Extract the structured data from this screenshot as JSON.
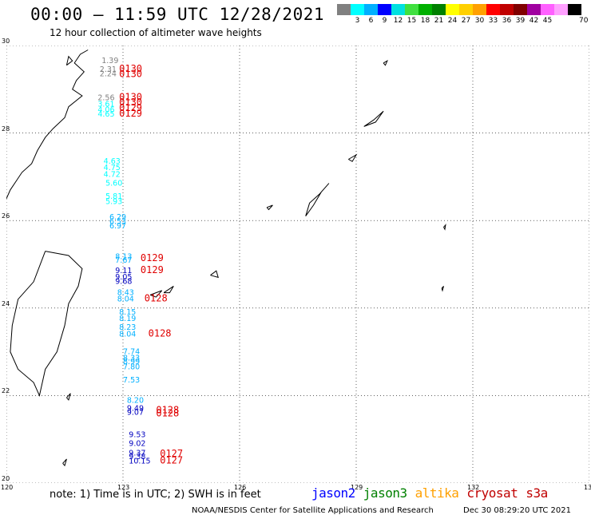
{
  "title": "00:00 – 11:59 UTC 12/28/2021",
  "subtitle": "12 hour collection of altimeter wave heights",
  "legend": {
    "unit": "70 (ft)",
    "colors": [
      "#808080",
      "#00ffff",
      "#00b0ff",
      "#0000ff",
      "#00e0e0",
      "#40e040",
      "#00b000",
      "#008000",
      "#ffff00",
      "#ffd000",
      "#ffa000",
      "#ff0000",
      "#c00000",
      "#800000",
      "#a000a0",
      "#ff60ff",
      "#ffa0ff",
      "#000000"
    ],
    "labels": [
      "",
      "3",
      "6",
      "9",
      "12",
      "15",
      "18",
      "21",
      "24",
      "27",
      "30",
      "33",
      "36",
      "39",
      "42",
      "45",
      "70 (ft)",
      ""
    ]
  },
  "axes": {
    "x_ticks": [
      "120",
      "123",
      "126",
      "129",
      "132",
      "135"
    ],
    "y_ticks": [
      "30",
      "28",
      "26",
      "24",
      "22",
      "20"
    ],
    "x_range": [
      120,
      135
    ],
    "y_range": [
      20,
      30
    ]
  },
  "observations": [
    {
      "lon": 122.45,
      "lat": 29.6,
      "text": "1.39",
      "color": "#808080"
    },
    {
      "lon": 122.4,
      "lat": 29.4,
      "text": "2.31",
      "color": "#808080"
    },
    {
      "lon": 122.4,
      "lat": 29.3,
      "text": "2.24",
      "color": "#808080"
    },
    {
      "lon": 122.35,
      "lat": 28.75,
      "text": "2.56",
      "color": "#808080"
    },
    {
      "lon": 122.35,
      "lat": 28.6,
      "text": "3.61",
      "color": "#00ffff"
    },
    {
      "lon": 122.35,
      "lat": 28.48,
      "text": "4.06",
      "color": "#00ffff"
    },
    {
      "lon": 122.35,
      "lat": 28.38,
      "text": "4.65",
      "color": "#00ffff"
    },
    {
      "lon": 122.5,
      "lat": 27.3,
      "text": "4.63",
      "color": "#00ffff"
    },
    {
      "lon": 122.5,
      "lat": 27.15,
      "text": "4.75",
      "color": "#00ffff"
    },
    {
      "lon": 122.5,
      "lat": 27.0,
      "text": "4.72",
      "color": "#00ffff"
    },
    {
      "lon": 122.55,
      "lat": 26.8,
      "text": "5.60",
      "color": "#00ffff"
    },
    {
      "lon": 122.55,
      "lat": 26.5,
      "text": "5.81",
      "color": "#00ffff"
    },
    {
      "lon": 122.55,
      "lat": 26.38,
      "text": "5.93",
      "color": "#00ffff"
    },
    {
      "lon": 122.65,
      "lat": 26.02,
      "text": "6.29",
      "color": "#00b0ff"
    },
    {
      "lon": 122.65,
      "lat": 25.92,
      "text": "6.53",
      "color": "#00b0ff"
    },
    {
      "lon": 122.65,
      "lat": 25.82,
      "text": "6.97",
      "color": "#00b0ff"
    },
    {
      "lon": 122.8,
      "lat": 25.12,
      "text": "8.13",
      "color": "#00b0ff"
    },
    {
      "lon": 122.8,
      "lat": 25.04,
      "text": "7.67",
      "color": "#00b0ff"
    },
    {
      "lon": 122.8,
      "lat": 24.8,
      "text": "9.11",
      "color": "#0000c0"
    },
    {
      "lon": 122.8,
      "lat": 24.65,
      "text": "9.05",
      "color": "#0000c0"
    },
    {
      "lon": 122.8,
      "lat": 24.55,
      "text": "9.68",
      "color": "#0000c0"
    },
    {
      "lon": 122.85,
      "lat": 24.3,
      "text": "8.43",
      "color": "#00b0ff"
    },
    {
      "lon": 122.85,
      "lat": 24.15,
      "text": "8.04",
      "color": "#00b0ff"
    },
    {
      "lon": 122.9,
      "lat": 23.85,
      "text": "8.15",
      "color": "#00b0ff"
    },
    {
      "lon": 122.9,
      "lat": 23.7,
      "text": "8.19",
      "color": "#00b0ff"
    },
    {
      "lon": 122.9,
      "lat": 23.5,
      "text": "8.23",
      "color": "#00b0ff"
    },
    {
      "lon": 122.9,
      "lat": 23.35,
      "text": "8.04",
      "color": "#00b0ff"
    },
    {
      "lon": 123.0,
      "lat": 22.95,
      "text": "7.74",
      "color": "#00b0ff"
    },
    {
      "lon": 123.0,
      "lat": 22.8,
      "text": "8.33",
      "color": "#00b0ff"
    },
    {
      "lon": 123.0,
      "lat": 22.72,
      "text": "8.99",
      "color": "#00b0ff"
    },
    {
      "lon": 123.0,
      "lat": 22.6,
      "text": "7.80",
      "color": "#00b0ff"
    },
    {
      "lon": 123.0,
      "lat": 22.3,
      "text": "7.53",
      "color": "#00b0ff"
    },
    {
      "lon": 123.1,
      "lat": 21.83,
      "text": "8.20",
      "color": "#00b0ff"
    },
    {
      "lon": 123.1,
      "lat": 21.65,
      "text": "9.49",
      "color": "#0000c0"
    },
    {
      "lon": 123.1,
      "lat": 21.56,
      "text": "9.07",
      "color": "#0000c0"
    },
    {
      "lon": 123.15,
      "lat": 21.05,
      "text": "9.53",
      "color": "#0000c0"
    },
    {
      "lon": 123.15,
      "lat": 20.85,
      "text": "9.02",
      "color": "#0000c0"
    },
    {
      "lon": 123.15,
      "lat": 20.63,
      "text": "9.37",
      "color": "#0000c0"
    },
    {
      "lon": 123.15,
      "lat": 20.55,
      "text": "9.38",
      "color": "#0000c0"
    },
    {
      "lon": 123.15,
      "lat": 20.45,
      "text": "10.15",
      "color": "#0000c0"
    }
  ],
  "times": [
    {
      "lon": 122.9,
      "lat": 29.4,
      "text": "0130"
    },
    {
      "lon": 122.9,
      "lat": 29.28,
      "text": "0130"
    },
    {
      "lon": 122.9,
      "lat": 28.75,
      "text": "0130"
    },
    {
      "lon": 122.9,
      "lat": 28.63,
      "text": "0130"
    },
    {
      "lon": 122.9,
      "lat": 28.5,
      "text": "0129"
    },
    {
      "lon": 122.9,
      "lat": 28.38,
      "text": "0129"
    },
    {
      "lon": 123.45,
      "lat": 25.07,
      "text": "0129"
    },
    {
      "lon": 123.45,
      "lat": 24.8,
      "text": "0129"
    },
    {
      "lon": 123.55,
      "lat": 24.15,
      "text": "0128"
    },
    {
      "lon": 123.65,
      "lat": 23.35,
      "text": "0128"
    },
    {
      "lon": 123.85,
      "lat": 21.6,
      "text": "0128"
    },
    {
      "lon": 123.85,
      "lat": 21.52,
      "text": "0128"
    },
    {
      "lon": 123.95,
      "lat": 20.6,
      "text": "0127"
    },
    {
      "lon": 123.95,
      "lat": 20.45,
      "text": "0127"
    }
  ],
  "note": "note:  1) Time is in UTC;  2) SWH is in feet",
  "satellites": [
    {
      "name": "jason2",
      "color": "#0000ff"
    },
    {
      "name": "jason3",
      "color": "#008000"
    },
    {
      "name": "altika",
      "color": "#ffa000"
    },
    {
      "name": "cryosat",
      "color": "#c00000"
    },
    {
      "name": "s3a",
      "color": "#c00000"
    }
  ],
  "credit": "NOAA/NESDIS Center for Satellite Applications and Research",
  "credit_date": "Dec 30 08:29:20 UTC 2021"
}
